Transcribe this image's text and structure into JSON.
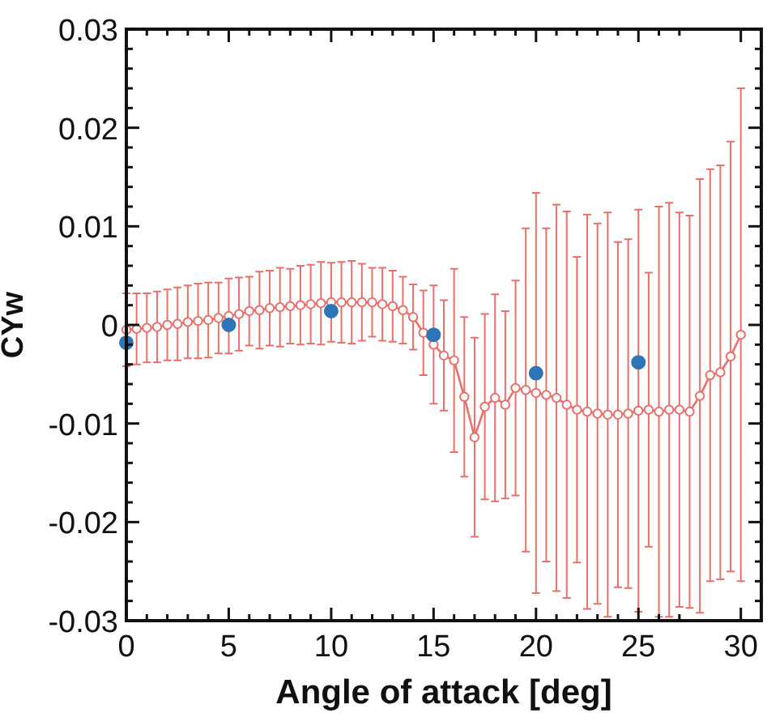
{
  "chart_data": {
    "type": "line",
    "xlabel": "Angle of attack [deg]",
    "ylabel": "CYw",
    "xlim": [
      0,
      31
    ],
    "ylim": [
      -0.03,
      0.03
    ],
    "xticks": [
      0,
      {
        "value": 1,
        "label": null
      },
      {
        "value": 2,
        "label": null
      },
      {
        "value": 3,
        "label": null
      },
      {
        "value": 4,
        "label": null
      },
      5,
      {
        "value": 6,
        "label": null
      },
      {
        "value": 7,
        "label": null
      },
      {
        "value": 8,
        "label": null
      },
      {
        "value": 9,
        "label": null
      },
      10,
      {
        "value": 11,
        "label": null
      },
      {
        "value": 12,
        "label": null
      },
      {
        "value": 13,
        "label": null
      },
      {
        "value": 14,
        "label": null
      },
      15,
      {
        "value": 16,
        "label": null
      },
      {
        "value": 17,
        "label": null
      },
      {
        "value": 18,
        "label": null
      },
      {
        "value": 19,
        "label": null
      },
      20,
      {
        "value": 21,
        "label": null
      },
      {
        "value": 22,
        "label": null
      },
      {
        "value": 23,
        "label": null
      },
      {
        "value": 24,
        "label": null
      },
      25,
      {
        "value": 26,
        "label": null
      },
      {
        "value": 27,
        "label": null
      },
      30
    ],
    "yticks": [
      -0.03,
      {
        "value": -0.028,
        "label": null
      },
      {
        "value": -0.026,
        "label": null
      },
      {
        "value": -0.024,
        "label": null
      },
      {
        "value": -0.022,
        "label": null
      },
      -0.02,
      {
        "value": -0.018,
        "label": null
      },
      {
        "value": -0.016,
        "label": null
      },
      {
        "value": -0.014,
        "label": null
      },
      {
        "value": -0.012,
        "label": null
      },
      -0.01,
      {
        "value": -0.008,
        "label": null
      },
      {
        "value": -0.006,
        "label": null
      },
      {
        "value": -0.004,
        "label": null
      },
      {
        "value": -0.002,
        "label": null
      },
      0,
      {
        "value": 0.002,
        "label": null
      },
      {
        "value": 0.004,
        "label": null
      },
      {
        "value": 0.006,
        "label": null
      },
      {
        "value": 0.008,
        "label": null
      },
      0.01,
      {
        "value": 0.012,
        "label": null
      },
      {
        "value": 0.014,
        "label": null
      },
      {
        "value": 0.016,
        "label": null
      },
      {
        "value": 0.018,
        "label": null
      },
      0.02,
      {
        "value": 0.022,
        "label": null
      },
      {
        "value": 0.024,
        "label": null
      },
      {
        "value": 0.026,
        "label": null
      },
      {
        "value": 0.028,
        "label": null
      },
      0.03
    ],
    "grid": false,
    "legend": false,
    "series": [
      {
        "type": "line",
        "color": "#e8706a",
        "marker": "circle",
        "line_style": "solid",
        "x": [
          0,
          0.5,
          1,
          1.5,
          2,
          2.5,
          3,
          3.5,
          4,
          4.5,
          5,
          5.5,
          6,
          6.5,
          7,
          7.5,
          8,
          8.5,
          9,
          9.5,
          10,
          10.5,
          11,
          11.5,
          12,
          12.5,
          13,
          13.5,
          14,
          14.5,
          15,
          15.5,
          16,
          16.5,
          17,
          17.5,
          18,
          18.5,
          19,
          19.5,
          20,
          20.5,
          21,
          21.5,
          22,
          22.5,
          23,
          23.5,
          24,
          24.5,
          25,
          25.5,
          26,
          26.5,
          27,
          27.5,
          28,
          28.5,
          29,
          29.5,
          30
        ],
        "values": [
          -0.0005,
          -0.0004,
          -0.0003,
          -0.0002,
          0,
          0.0001,
          0.0003,
          0.0004,
          0.0005,
          0.0007,
          0.0009,
          0.0011,
          0.0014,
          0.0015,
          0.0017,
          0.0018,
          0.0019,
          0.002,
          0.0021,
          0.0022,
          0.0023,
          0.0023,
          0.0023,
          0.0023,
          0.0023,
          0.0021,
          0.0019,
          0.0015,
          0.0008,
          -0.0008,
          -0.002,
          -0.0031,
          -0.0036,
          -0.0073,
          -0.0114,
          -0.0083,
          -0.0074,
          -0.0081,
          -0.0064,
          -0.0066,
          -0.0069,
          -0.0071,
          -0.0074,
          -0.0081,
          -0.0086,
          -0.0088,
          -0.009,
          -0.0091,
          -0.0091,
          -0.009,
          -0.0087,
          -0.0086,
          -0.0088,
          -0.0086,
          -0.0086,
          -0.0088,
          -0.0072,
          -0.0051,
          -0.0048,
          -0.0032,
          -0.001
        ],
        "errors": [
          0.0037,
          0.0036,
          0.0035,
          0.0036,
          0.0036,
          0.0037,
          0.0037,
          0.0038,
          0.0038,
          0.0036,
          0.0038,
          0.0037,
          0.0035,
          0.0039,
          0.0038,
          0.004,
          0.0038,
          0.004,
          0.004,
          0.0042,
          0.004,
          0.0041,
          0.0042,
          0.0039,
          0.0035,
          0.0037,
          0.0036,
          0.0034,
          0.0033,
          0.0043,
          0.006,
          0.0056,
          0.0093,
          0.0081,
          0.0101,
          0.0094,
          0.0105,
          0.0095,
          0.0109,
          0.0164,
          0.0203,
          0.0169,
          0.0196,
          0.0196,
          0.0155,
          0.02,
          0.0193,
          0.0205,
          0.0175,
          0.0177,
          0.0204,
          0.0139,
          0.0208,
          0.021,
          0.02,
          0.0199,
          0.022,
          0.0209,
          0.021,
          0.0218,
          0.025
        ]
      },
      {
        "type": "scatter",
        "color": "#2e75b6",
        "marker": "circle",
        "x": [
          0,
          5,
          10,
          15,
          20,
          25
        ],
        "values": [
          -0.0018,
          0,
          0.0014,
          -0.001,
          -0.0049,
          -0.0038
        ]
      }
    ]
  }
}
